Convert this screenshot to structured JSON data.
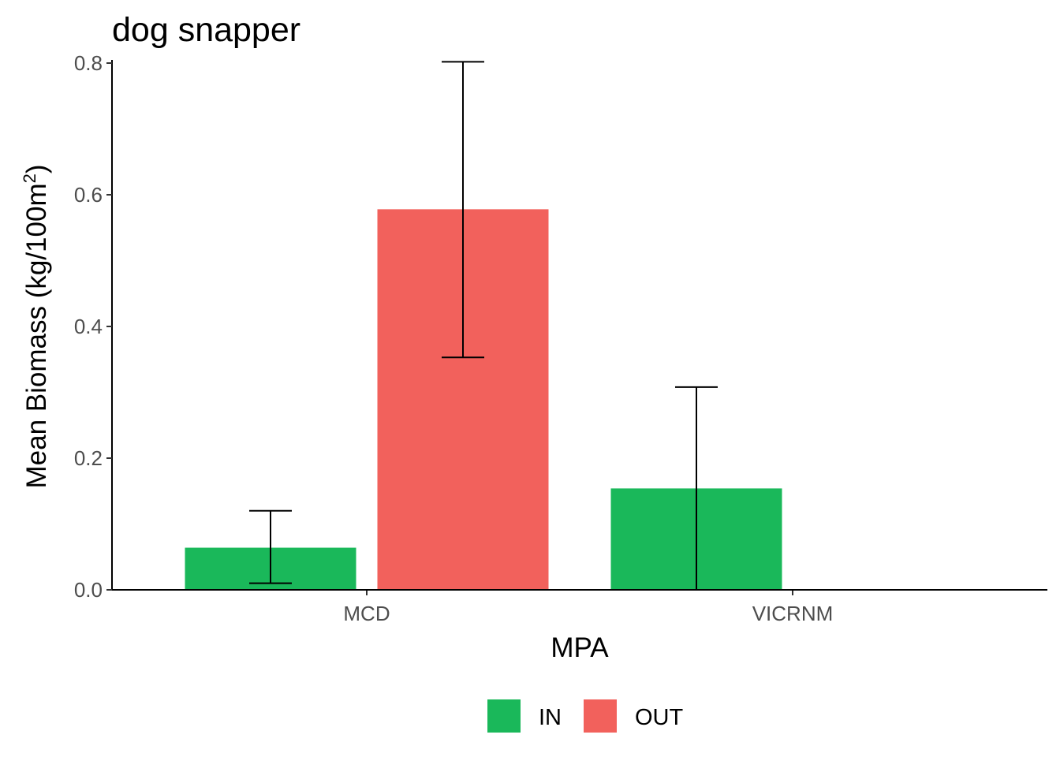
{
  "chart_data": {
    "type": "bar",
    "title": "dog snapper",
    "xlabel": "MPA",
    "ylabel_prefix": "Mean Biomass (kg/100m",
    "ylabel_superscript": "2",
    "ylabel_suffix": ")",
    "categories": [
      "MCD",
      "VICRNM"
    ],
    "series": [
      {
        "name": "IN",
        "color": "#1ab85a",
        "values": [
          0.064,
          0.154
        ],
        "error_low": [
          0.01,
          0.0
        ],
        "error_high": [
          0.12,
          0.308
        ]
      },
      {
        "name": "OUT",
        "color": "#f2615c",
        "values": [
          0.578,
          0.0
        ],
        "error_low": [
          0.353,
          0.0
        ],
        "error_high": [
          0.802,
          0.0
        ]
      }
    ],
    "ylim": [
      0,
      0.8
    ],
    "yticks": [
      0.0,
      0.2,
      0.4,
      0.6,
      0.8
    ],
    "ytick_labels": [
      "0.0",
      "0.2",
      "0.4",
      "0.6",
      "0.8"
    ],
    "grid": false,
    "legend_position": "bottom"
  }
}
